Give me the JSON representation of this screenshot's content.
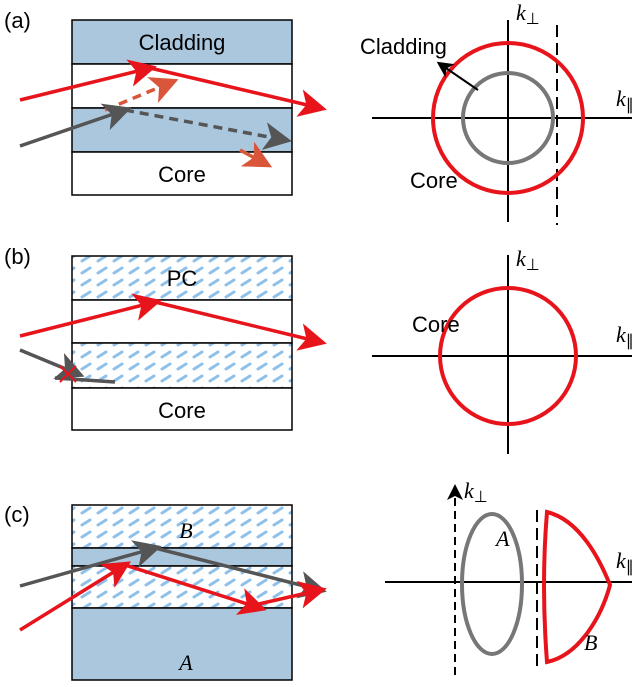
{
  "panels": [
    {
      "label": "(a)",
      "layers": {
        "top": "Cladding",
        "bottom": "Core"
      },
      "plot": {
        "k_perp": {
          "symbol": "k",
          "sub": "⊥"
        },
        "k_par": {
          "symbol": "k",
          "sub": "∥"
        },
        "annotations": [
          "Cladding",
          "Core"
        ]
      }
    },
    {
      "label": "(b)",
      "layers": {
        "top": "PC",
        "bottom": "Core"
      },
      "plot": {
        "k_perp": {
          "symbol": "k",
          "sub": "⊥"
        },
        "k_par": {
          "symbol": "k",
          "sub": "∥"
        },
        "annotations": [
          "Core"
        ]
      }
    },
    {
      "label": "(c)",
      "layers": {
        "top": "B",
        "bottom": "A"
      },
      "plot": {
        "k_perp": {
          "symbol": "k",
          "sub": "⊥"
        },
        "k_par": {
          "symbol": "k",
          "sub": "∥"
        },
        "annotations": [
          "A",
          "B"
        ]
      }
    }
  ]
}
